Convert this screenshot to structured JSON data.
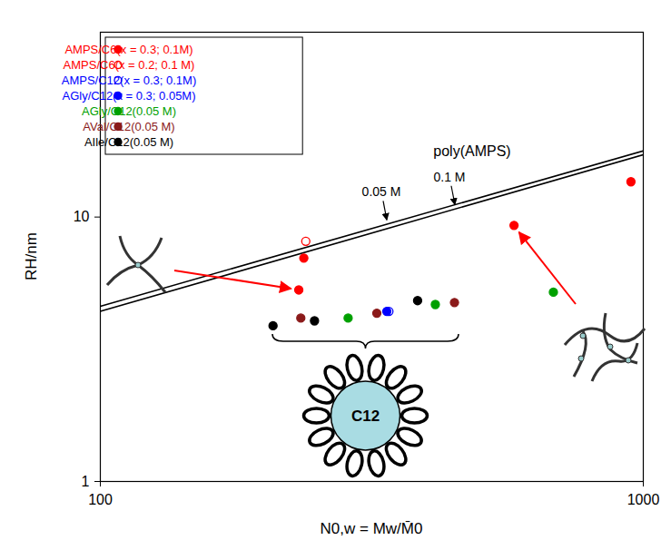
{
  "chart_data": {
    "type": "scatter",
    "xlabel": "N0,w = Mw/M̄0",
    "ylabel": "RH/nm",
    "log": true,
    "xlim": [
      100,
      1000
    ],
    "ylim": [
      1,
      50
    ],
    "xticks": [
      100,
      1000
    ],
    "yticks": [
      1,
      10
    ],
    "legend": "top-left",
    "series": [
      {
        "name": "AMPS/C6(x = 0.3; 0.1M)",
        "color": "#ff0000",
        "marker": "circle",
        "x": [
          232,
          237,
          578,
          949
        ],
        "values": [
          5.3,
          7.0,
          9.3,
          13.6
        ]
      },
      {
        "name": "AMPS/C6(x = 0.2; 0.1 M)",
        "color": "#ff0000",
        "marker": "open circle",
        "x": [
          239
        ],
        "values": [
          8.1
        ]
      },
      {
        "name": "AMPS/C12(x = 0.3; 0.1M)",
        "color": "#0000ff",
        "marker": "open circle",
        "x": [
          340
        ],
        "values": [
          4.4
        ]
      },
      {
        "name": "AGly/C12(x = 0.3; 0.05M)",
        "color": "#0000ff",
        "marker": "circle",
        "x": [
          337
        ],
        "values": [
          4.4
        ]
      },
      {
        "name": "AGly/C12(0.05 M)",
        "color": "#00a000",
        "marker": "circle",
        "x": [
          286,
          414,
          683
        ],
        "values": [
          4.15,
          4.67,
          5.2
        ]
      },
      {
        "name": "AVal/C12(0.05 M)",
        "color": "#8b1a1a",
        "marker": "circle",
        "x": [
          234,
          323,
          449
        ],
        "values": [
          4.15,
          4.33,
          4.75
        ]
      },
      {
        "name": "AIle/C12(0.05 M)",
        "color": "#000000",
        "marker": "circle",
        "x": [
          208,
          248,
          384
        ],
        "values": [
          3.88,
          4.05,
          4.83
        ]
      },
      {
        "name": "0.05 M",
        "type": "line",
        "color": "#000000",
        "x": [
          100,
          1000
        ],
        "values": [
          4.6,
          17.8
        ]
      },
      {
        "name": "0.1 M",
        "type": "line",
        "color": "#000000",
        "x": [
          100,
          1000
        ],
        "values": [
          4.4,
          17.2
        ]
      }
    ],
    "annotations": [
      "poly(AMPS)",
      "C12"
    ]
  }
}
